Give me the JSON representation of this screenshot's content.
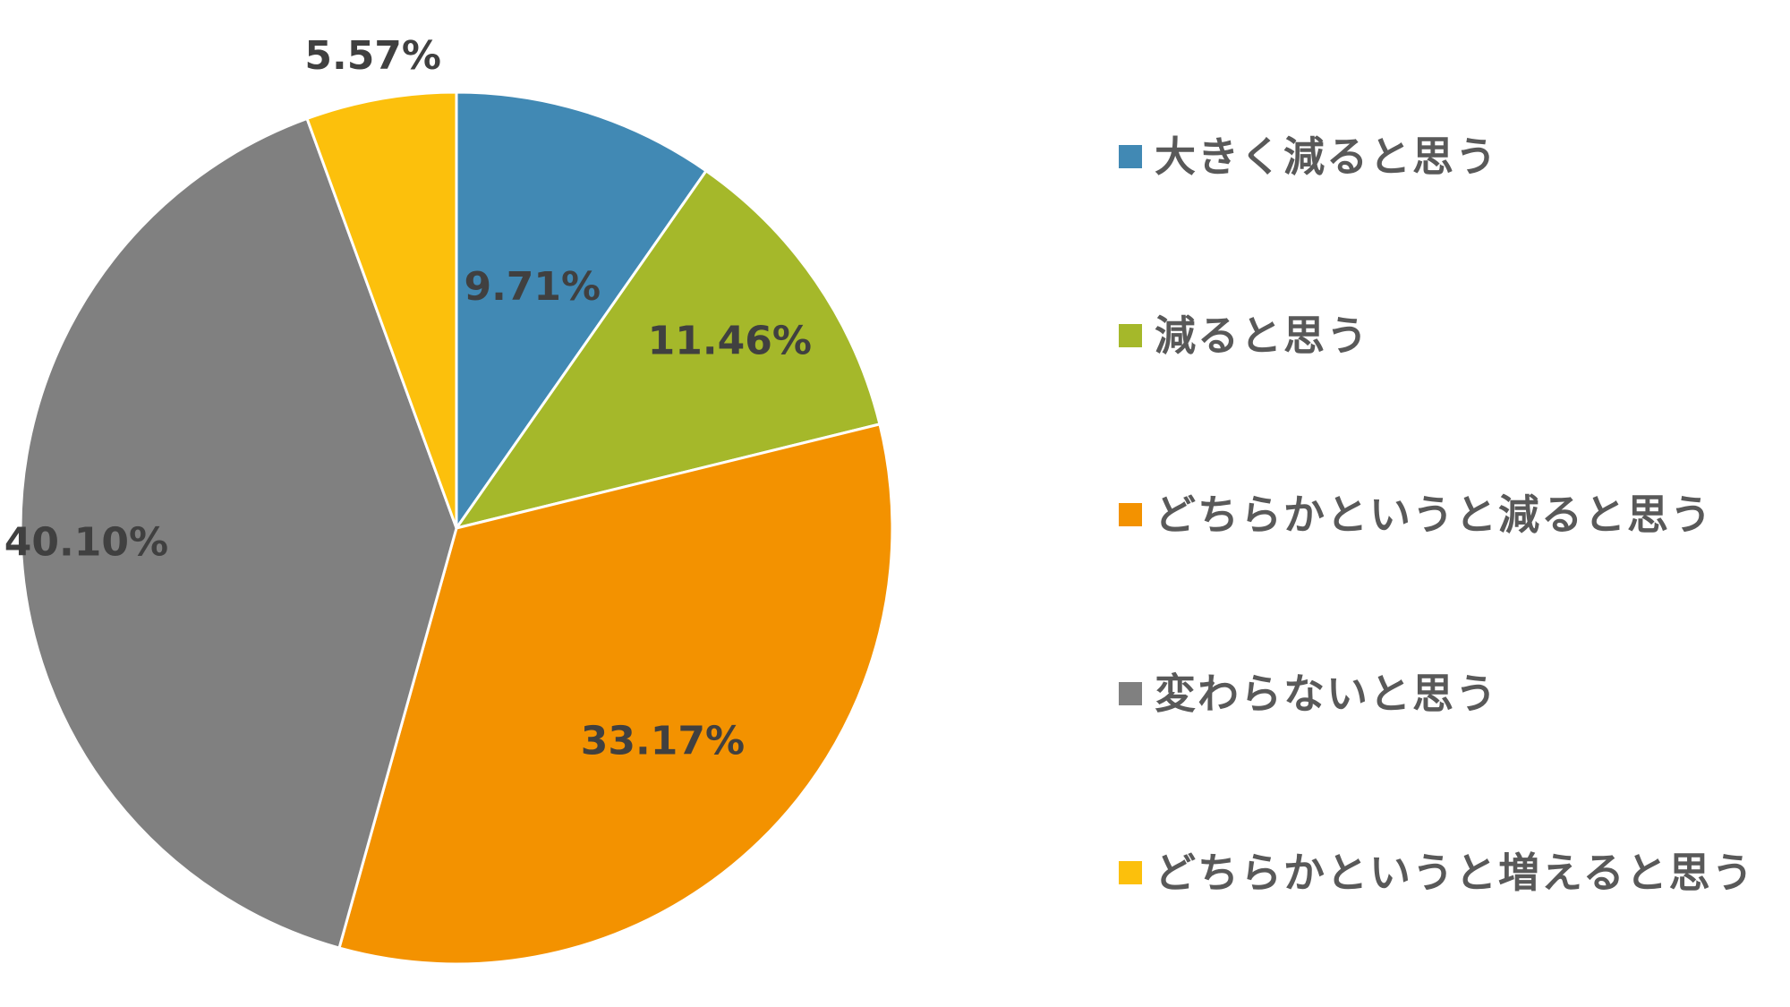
{
  "chart_data": {
    "type": "pie",
    "categories": [
      "大きく減ると思う",
      "減ると思う",
      "どちらかというと減ると思う",
      "変わらないと思う",
      "どちらかというと増えると思う"
    ],
    "values": [
      9.71,
      11.46,
      33.17,
      40.1,
      5.57
    ],
    "value_labels": [
      "9.71%",
      "11.46%",
      "33.17%",
      "40.10%",
      "5.57%"
    ],
    "colors": [
      "#4189B4",
      "#A5B82A",
      "#F39200",
      "#808080",
      "#FCC00C"
    ],
    "start_angle": "12 o'clock",
    "direction": "clockwise",
    "legend_position": "right",
    "title": ""
  }
}
